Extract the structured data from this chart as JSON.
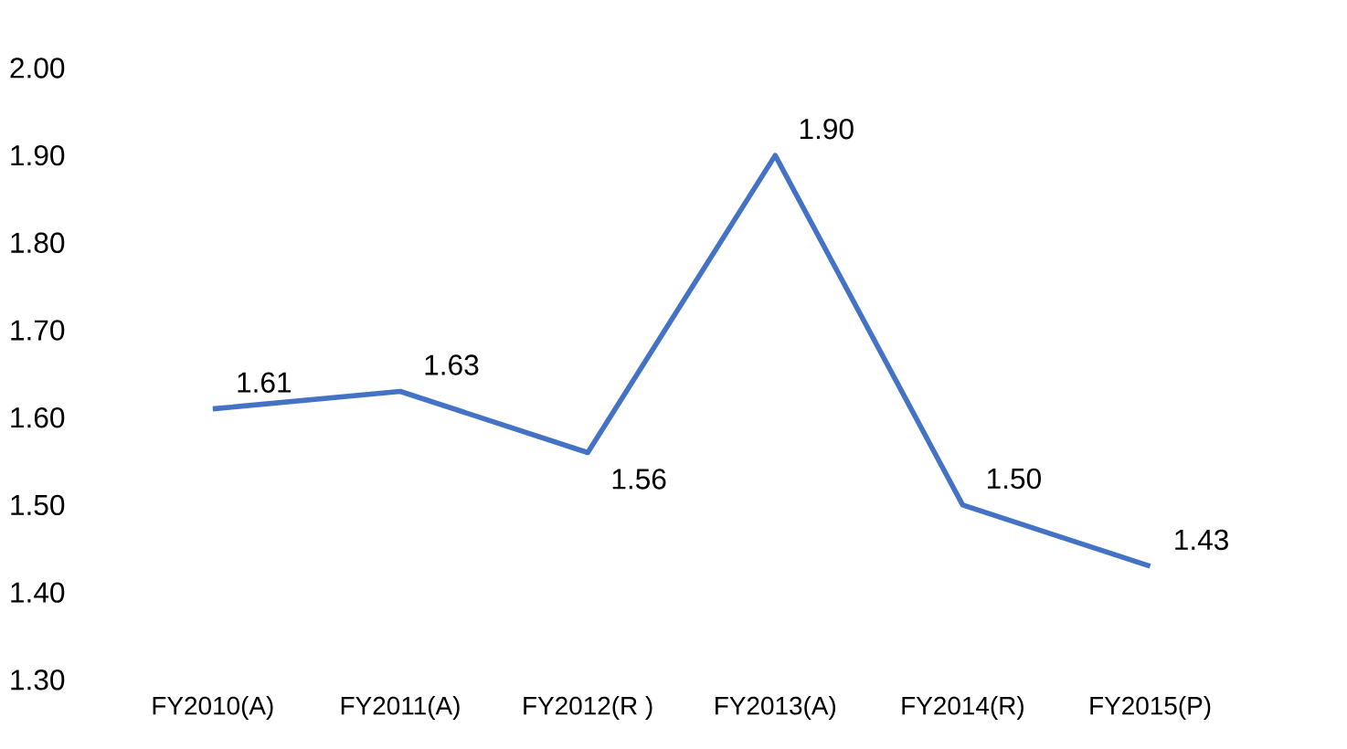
{
  "chart_data": {
    "type": "line",
    "categories": [
      "FY2010(A)",
      "FY2011(A)",
      "FY2012(R )",
      "FY2013(A)",
      "FY2014(R)",
      "FY2015(P)"
    ],
    "values": [
      1.61,
      1.63,
      1.56,
      1.9,
      1.5,
      1.43
    ],
    "value_labels": [
      "1.61",
      "1.63",
      "1.56",
      "1.90",
      "1.50",
      "1.43"
    ],
    "color": "#4472c4",
    "ylim": [
      1.3,
      2.0
    ],
    "yticks": [
      {
        "value": 1.3,
        "label": "1.30"
      },
      {
        "value": 1.4,
        "label": "1.40"
      },
      {
        "value": 1.5,
        "label": "1.50"
      },
      {
        "value": 1.6,
        "label": "1.60"
      },
      {
        "value": 1.7,
        "label": "1.70"
      },
      {
        "value": 1.8,
        "label": "1.80"
      },
      {
        "value": 1.9,
        "label": "1.90"
      },
      {
        "value": 2.0,
        "label": "2.00"
      }
    ],
    "grid": false,
    "marker": "none",
    "line_style": "solid"
  }
}
